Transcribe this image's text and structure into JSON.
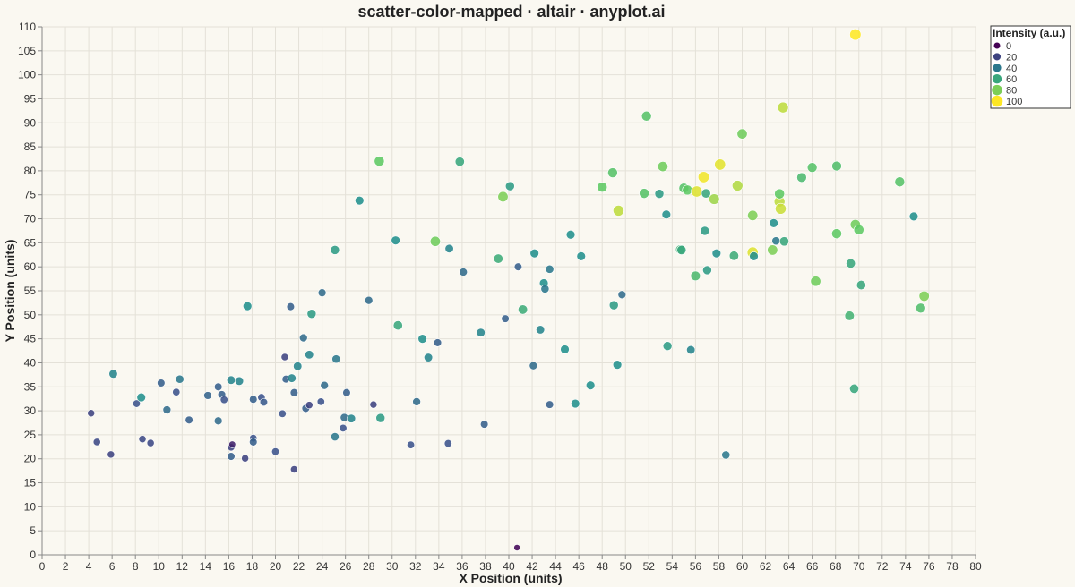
{
  "chart_data": {
    "type": "scatter",
    "title": "scatter-color-mapped · altair · anyplot.ai",
    "xlabel": "X Position (units)",
    "ylabel": "Y Position (units)",
    "xlim": [
      0,
      80
    ],
    "ylim": [
      0,
      110
    ],
    "xtick_step": 2,
    "ytick_step": 5,
    "grid": true,
    "legend": {
      "title": "Intensity (a.u.)",
      "placement": "top-right",
      "entries": [
        0,
        20,
        40,
        60,
        80,
        100
      ]
    },
    "colormap": [
      "#440154",
      "#3B528B",
      "#21908C",
      "#5DC863",
      "#FDE725"
    ],
    "points": [
      [
        40.7,
        1.5,
        2
      ],
      [
        4.2,
        29.5,
        20
      ],
      [
        4.7,
        23.5,
        22
      ],
      [
        5.9,
        20.9,
        20
      ],
      [
        6.1,
        37.7,
        45
      ],
      [
        8.1,
        31.5,
        25
      ],
      [
        8.5,
        32.8,
        50
      ],
      [
        8.6,
        24.1,
        22
      ],
      [
        9.3,
        23.3,
        22
      ],
      [
        10.2,
        35.8,
        30
      ],
      [
        10.7,
        30.2,
        35
      ],
      [
        11.5,
        33.9,
        25
      ],
      [
        11.8,
        36.6,
        40
      ],
      [
        12.6,
        28.1,
        30
      ],
      [
        14.2,
        33.2,
        32
      ],
      [
        15.1,
        35.0,
        30
      ],
      [
        15.1,
        27.9,
        35
      ],
      [
        15.4,
        33.4,
        30
      ],
      [
        15.6,
        32.3,
        25
      ],
      [
        16.2,
        36.4,
        45
      ],
      [
        16.2,
        20.5,
        30
      ],
      [
        16.2,
        22.4,
        20
      ],
      [
        16.3,
        23.0,
        10
      ],
      [
        16.9,
        36.2,
        45
      ],
      [
        17.4,
        20.1,
        20
      ],
      [
        17.6,
        51.8,
        50
      ],
      [
        18.1,
        32.4,
        30
      ],
      [
        18.1,
        24.3,
        25
      ],
      [
        18.1,
        23.5,
        30
      ],
      [
        18.8,
        32.8,
        25
      ],
      [
        19.0,
        31.8,
        28
      ],
      [
        20.0,
        21.5,
        25
      ],
      [
        20.6,
        29.4,
        25
      ],
      [
        20.8,
        41.2,
        20
      ],
      [
        20.9,
        36.6,
        30
      ],
      [
        21.3,
        51.7,
        30
      ],
      [
        21.4,
        36.8,
        45
      ],
      [
        21.6,
        33.8,
        30
      ],
      [
        21.6,
        17.8,
        20
      ],
      [
        21.9,
        39.3,
        45
      ],
      [
        22.4,
        45.2,
        35
      ],
      [
        22.6,
        30.5,
        30
      ],
      [
        22.9,
        41.7,
        45
      ],
      [
        22.9,
        31.2,
        20
      ],
      [
        23.1,
        50.2,
        55
      ],
      [
        23.9,
        31.9,
        25
      ],
      [
        24.0,
        54.6,
        35
      ],
      [
        24.2,
        35.3,
        35
      ],
      [
        25.1,
        63.5,
        55
      ],
      [
        25.1,
        24.6,
        40
      ],
      [
        25.2,
        40.8,
        40
      ],
      [
        25.8,
        26.4,
        25
      ],
      [
        25.9,
        28.6,
        35
      ],
      [
        26.1,
        33.8,
        30
      ],
      [
        26.5,
        28.4,
        45
      ],
      [
        27.2,
        73.8,
        50
      ],
      [
        28.0,
        53.0,
        35
      ],
      [
        28.4,
        31.3,
        20
      ],
      [
        28.9,
        82.0,
        75
      ],
      [
        29.0,
        28.5,
        55
      ],
      [
        30.3,
        65.5,
        50
      ],
      [
        30.5,
        47.8,
        60
      ],
      [
        31.6,
        22.9,
        25
      ],
      [
        32.1,
        31.9,
        35
      ],
      [
        32.6,
        45.0,
        50
      ],
      [
        33.1,
        41.1,
        45
      ],
      [
        33.7,
        65.3,
        78
      ],
      [
        33.9,
        44.2,
        30
      ],
      [
        34.8,
        23.2,
        25
      ],
      [
        34.9,
        63.8,
        45
      ],
      [
        35.8,
        81.9,
        60
      ],
      [
        36.1,
        58.9,
        35
      ],
      [
        37.6,
        46.3,
        45
      ],
      [
        37.9,
        27.2,
        30
      ],
      [
        39.1,
        61.7,
        62
      ],
      [
        39.5,
        74.6,
        80
      ],
      [
        39.7,
        49.2,
        30
      ],
      [
        40.1,
        76.8,
        55
      ],
      [
        40.8,
        60.0,
        30
      ],
      [
        41.2,
        51.1,
        62
      ],
      [
        42.1,
        39.4,
        35
      ],
      [
        42.2,
        62.8,
        50
      ],
      [
        42.7,
        46.9,
        45
      ],
      [
        43.0,
        56.6,
        50
      ],
      [
        43.1,
        55.4,
        40
      ],
      [
        43.5,
        59.5,
        40
      ],
      [
        43.5,
        31.3,
        30
      ],
      [
        44.8,
        42.8,
        50
      ],
      [
        45.3,
        66.7,
        50
      ],
      [
        45.7,
        31.5,
        50
      ],
      [
        46.2,
        62.2,
        50
      ],
      [
        47.0,
        35.3,
        50
      ],
      [
        48.0,
        76.6,
        75
      ],
      [
        48.9,
        79.6,
        72
      ],
      [
        49.0,
        52.0,
        55
      ],
      [
        49.3,
        39.6,
        50
      ],
      [
        49.4,
        71.7,
        90
      ],
      [
        49.7,
        54.2,
        35
      ],
      [
        51.6,
        75.3,
        72
      ],
      [
        51.8,
        91.4,
        72
      ],
      [
        52.9,
        75.2,
        55
      ],
      [
        53.2,
        80.9,
        78
      ],
      [
        53.5,
        70.9,
        50
      ],
      [
        53.6,
        43.5,
        55
      ],
      [
        54.7,
        63.6,
        65
      ],
      [
        54.8,
        63.5,
        60
      ],
      [
        55.0,
        76.4,
        72
      ],
      [
        55.3,
        76.0,
        75
      ],
      [
        55.6,
        42.7,
        45
      ],
      [
        56.0,
        58.1,
        68
      ],
      [
        56.1,
        75.7,
        95
      ],
      [
        56.7,
        78.7,
        98
      ],
      [
        56.8,
        67.5,
        55
      ],
      [
        56.9,
        75.3,
        60
      ],
      [
        57.0,
        59.3,
        55
      ],
      [
        57.6,
        74.1,
        85
      ],
      [
        57.8,
        62.8,
        50
      ],
      [
        58.1,
        81.3,
        96
      ],
      [
        58.6,
        20.8,
        40
      ],
      [
        59.3,
        62.3,
        62
      ],
      [
        59.6,
        76.9,
        88
      ],
      [
        60.0,
        87.7,
        78
      ],
      [
        60.9,
        70.7,
        80
      ],
      [
        60.9,
        63.0,
        95
      ],
      [
        61.0,
        62.2,
        50
      ],
      [
        62.6,
        63.5,
        80
      ],
      [
        62.7,
        69.1,
        50
      ],
      [
        62.9,
        65.4,
        40
      ],
      [
        63.2,
        73.6,
        90
      ],
      [
        63.2,
        75.2,
        75
      ],
      [
        63.3,
        72.1,
        92
      ],
      [
        63.5,
        93.2,
        90
      ],
      [
        63.6,
        65.3,
        60
      ],
      [
        65.1,
        78.6,
        68
      ],
      [
        66.0,
        80.7,
        72
      ],
      [
        66.3,
        57.0,
        78
      ],
      [
        68.1,
        66.9,
        75
      ],
      [
        68.1,
        81.0,
        70
      ],
      [
        69.2,
        49.8,
        65
      ],
      [
        69.3,
        60.7,
        60
      ],
      [
        69.6,
        34.6,
        60
      ],
      [
        69.7,
        68.8,
        78
      ],
      [
        69.7,
        108.4,
        100
      ],
      [
        70.0,
        67.7,
        75
      ],
      [
        70.2,
        56.2,
        60
      ],
      [
        73.5,
        77.7,
        72
      ],
      [
        74.7,
        70.5,
        50
      ],
      [
        75.3,
        51.4,
        70
      ],
      [
        75.6,
        53.9,
        80
      ]
    ]
  }
}
